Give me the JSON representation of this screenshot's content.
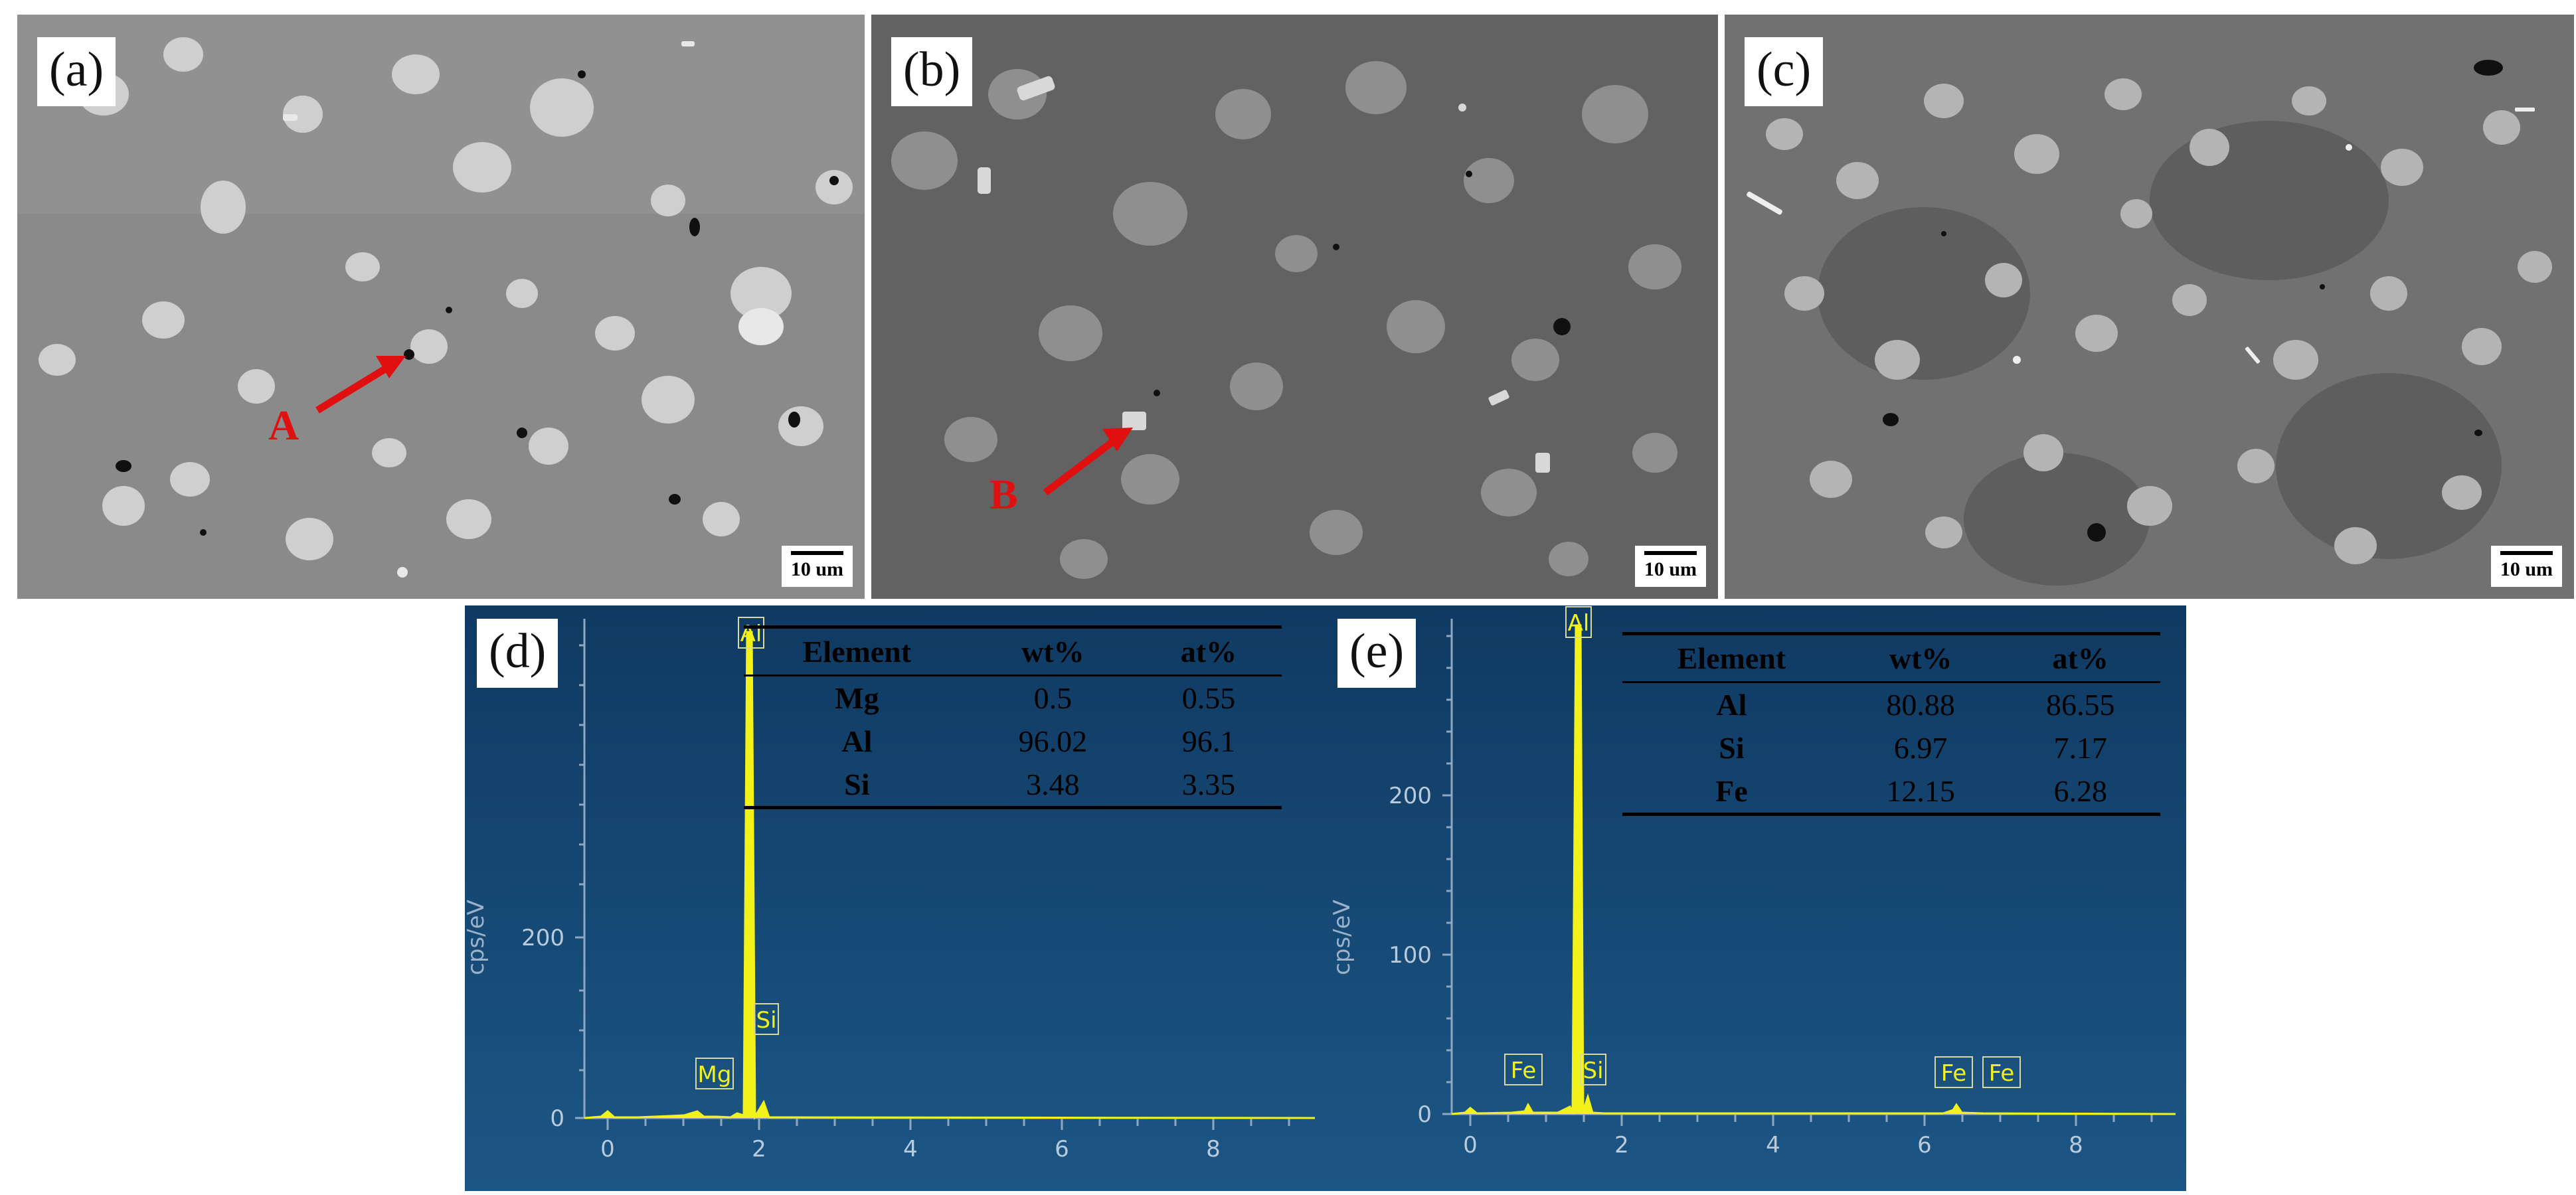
{
  "panels": {
    "a": {
      "label": "(a)",
      "scale": "10 um",
      "marker": "A"
    },
    "b": {
      "label": "(b)",
      "scale": "10 um",
      "marker": "B"
    },
    "c": {
      "label": "(c)",
      "scale": "10 um"
    }
  },
  "eds": {
    "d": {
      "label": "(d)",
      "ylabel": "cps/eV",
      "table": {
        "headers": [
          "Element",
          "wt%",
          "at%"
        ],
        "rows": [
          [
            "Mg",
            "0.5",
            "0.55"
          ],
          [
            "Al",
            "96.02",
            "96.1"
          ],
          [
            "Si",
            "3.48",
            "3.35"
          ]
        ]
      },
      "y_ticks": [
        "0",
        "200"
      ],
      "x_ticks": [
        "0",
        "2",
        "4",
        "6",
        "8"
      ],
      "peaks": [
        "Al",
        "Si",
        "Mg"
      ]
    },
    "e": {
      "label": "(e)",
      "ylabel": "cps/eV",
      "table": {
        "headers": [
          "Element",
          "wt%",
          "at%"
        ],
        "rows": [
          [
            "Al",
            "80.88",
            "86.55"
          ],
          [
            "Si",
            "6.97",
            "7.17"
          ],
          [
            "Fe",
            "12.15",
            "6.28"
          ]
        ]
      },
      "y_ticks": [
        "0",
        "100",
        "200"
      ],
      "x_ticks": [
        "0",
        "2",
        "4",
        "6",
        "8"
      ],
      "peaks": [
        "Al",
        "Fe",
        "Si",
        "Fe",
        "Fe"
      ]
    }
  },
  "colors": {
    "eds_bg": "#13426a",
    "peak": "#f2f21a",
    "marker": "#e01010"
  }
}
